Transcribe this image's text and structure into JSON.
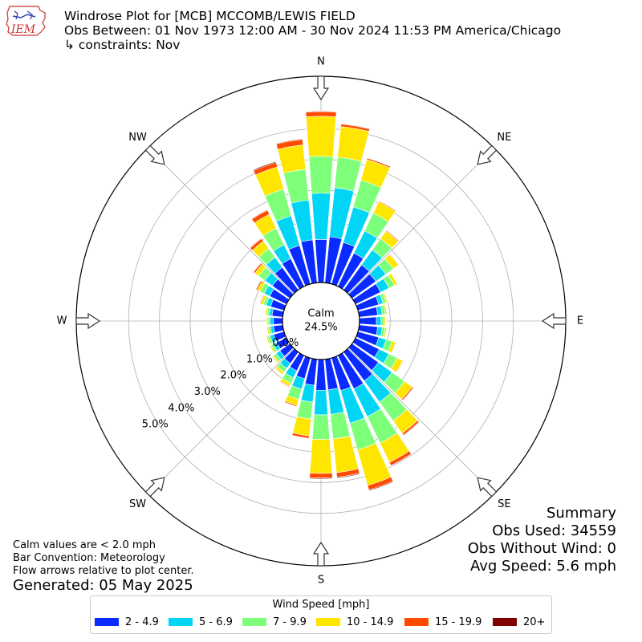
{
  "header": {
    "logo_text": "IEM",
    "title": "Windrose Plot for [MCB] MCCOMB/LEWIS FIELD",
    "obs_between": "Obs Between: 01 Nov 1973 12:00 AM - 30 Nov 2024 11:53 PM America/Chicago",
    "constraints": "↳ constraints: Nov"
  },
  "summary": {
    "title": "Summary",
    "obs_used": "Obs Used: 34559",
    "obs_without_wind": "Obs Without Wind: 0",
    "avg_speed": "Avg Speed: 5.6 mph"
  },
  "notes": {
    "calm_note": "Calm values are < 2.0 mph",
    "bar_convention": "Bar Convention: Meteorology",
    "flow_arrows": "Flow arrows relative to plot center.",
    "generated": "Generated: 05 May 2025"
  },
  "colors": {
    "bins": [
      "#0a2bff",
      "#00d5f5",
      "#7dff7a",
      "#ffe600",
      "#ff4a00",
      "#800000"
    ],
    "grid": "#b0b0b0"
  },
  "chart_data": {
    "type": "windrose",
    "calm_label": "Calm",
    "calm_value": "24.5%",
    "ring_labels": [
      "0.0%",
      "1.0%",
      "2.0%",
      "3.0%",
      "4.0%",
      "5.0%"
    ],
    "rmax": 6.7,
    "compass": [
      "N",
      "NE",
      "E",
      "SE",
      "S",
      "SW",
      "W",
      "NW"
    ],
    "legend_title": "Wind Speed [mph]",
    "speed_bins": [
      "2 - 4.9",
      "5 - 6.9",
      "7 - 9.9",
      "10 - 14.9",
      "15 - 19.9",
      "20+"
    ],
    "direction_bin_width_deg": 10,
    "directions_deg": [
      0,
      10,
      20,
      30,
      40,
      50,
      60,
      70,
      80,
      90,
      100,
      110,
      120,
      130,
      140,
      150,
      160,
      170,
      180,
      190,
      200,
      210,
      220,
      230,
      240,
      250,
      260,
      270,
      280,
      290,
      300,
      310,
      320,
      330,
      340,
      350
    ],
    "series": [
      {
        "name": "2 - 4.9",
        "values": [
          1.4,
          1.5,
          1.4,
          1.2,
          1.0,
          0.95,
          0.9,
          0.7,
          0.6,
          0.55,
          0.6,
          0.7,
          0.85,
          1.05,
          1.15,
          1.2,
          1.1,
          1.0,
          1.0,
          0.85,
          0.7,
          0.55,
          0.45,
          0.4,
          0.35,
          0.35,
          0.3,
          0.3,
          0.35,
          0.45,
          0.6,
          0.7,
          0.9,
          1.0,
          1.3,
          1.4
        ]
      },
      {
        "name": "5 - 6.9",
        "values": [
          1.5,
          1.6,
          1.2,
          0.8,
          0.6,
          0.4,
          0.3,
          0.15,
          0.15,
          0.15,
          0.15,
          0.25,
          0.35,
          0.55,
          0.85,
          1.0,
          1.1,
          0.8,
          0.8,
          0.55,
          0.35,
          0.25,
          0.2,
          0.15,
          0.12,
          0.12,
          0.1,
          0.1,
          0.1,
          0.15,
          0.2,
          0.3,
          0.4,
          0.5,
          1.0,
          1.3
        ]
      },
      {
        "name": "7 - 9.9",
        "values": [
          1.2,
          1.0,
          0.9,
          0.65,
          0.45,
          0.3,
          0.2,
          0.1,
          0.1,
          0.1,
          0.1,
          0.2,
          0.3,
          0.5,
          0.75,
          0.95,
          0.9,
          0.8,
          0.8,
          0.55,
          0.35,
          0.2,
          0.15,
          0.1,
          0.08,
          0.08,
          0.07,
          0.07,
          0.07,
          0.1,
          0.15,
          0.25,
          0.35,
          0.6,
          0.9,
          1.0
        ]
      },
      {
        "name": "10 - 14.9",
        "values": [
          1.3,
          1.0,
          0.7,
          0.4,
          0.3,
          0.2,
          0.1,
          0.05,
          0.05,
          0.05,
          0.05,
          0.12,
          0.2,
          0.3,
          0.5,
          0.7,
          1.2,
          1.1,
          1.1,
          0.55,
          0.2,
          0.1,
          0.08,
          0.05,
          0.05,
          0.05,
          0.05,
          0.05,
          0.05,
          0.08,
          0.1,
          0.15,
          0.3,
          0.5,
          0.75,
          0.8
        ]
      },
      {
        "name": "15 - 19.9",
        "values": [
          0.15,
          0.08,
          0.05,
          0.03,
          0.03,
          0.02,
          0.01,
          0.01,
          0.01,
          0.01,
          0.01,
          0.01,
          0.02,
          0.05,
          0.07,
          0.12,
          0.15,
          0.15,
          0.15,
          0.08,
          0.04,
          0.03,
          0.02,
          0.02,
          0.01,
          0.01,
          0.01,
          0.01,
          0.01,
          0.03,
          0.05,
          0.06,
          0.1,
          0.15,
          0.15,
          0.18
        ]
      },
      {
        "name": "20+",
        "values": [
          0.02,
          0.02,
          0.01,
          0,
          0,
          0,
          0,
          0,
          0,
          0,
          0,
          0,
          0,
          0.01,
          0.02,
          0.02,
          0.03,
          0.03,
          0.03,
          0.01,
          0.01,
          0.01,
          0,
          0,
          0,
          0,
          0,
          0,
          0,
          0.01,
          0.01,
          0.01,
          0.02,
          0.02,
          0.03,
          0.02
        ]
      }
    ]
  }
}
